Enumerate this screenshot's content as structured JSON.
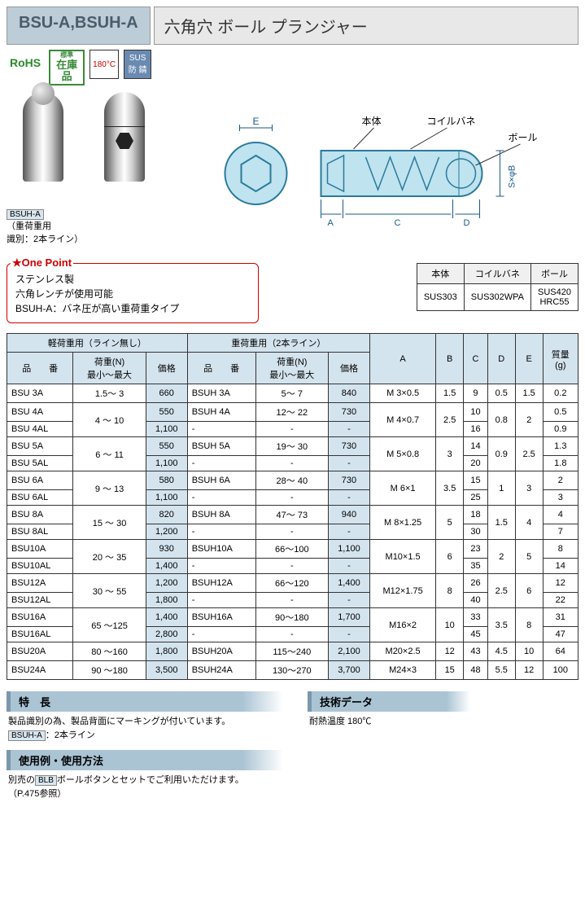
{
  "header": {
    "code": "BSU-A,BSUH-A",
    "title": "六角穴 ボール プランジャー"
  },
  "badges": {
    "rohs": "RoHS",
    "stock_small1": "標準",
    "stock_main": "在庫品",
    "temp": "180°C",
    "sus_top": "SUS",
    "sus_bottom": "防 錆"
  },
  "photo": {
    "tag": "BSUH-A",
    "caption1": "（重荷重用",
    "caption2": " 識別：2本ライン）"
  },
  "diagram": {
    "labels": {
      "body": "本体",
      "spring": "コイルバネ",
      "ball": "ボール"
    },
    "dims": {
      "E": "E",
      "A": "A",
      "C": "C",
      "D": "D",
      "SB": "S×φB"
    },
    "colors": {
      "fill": "#bfe3ef",
      "stroke": "#2a7a9a",
      "dim": "#1a5a8a"
    }
  },
  "onepoint": {
    "title": "One Point",
    "lines": [
      "ステンレス製",
      "六角レンチが使用可能",
      "BSUH-A：バネ圧が高い重荷重タイプ"
    ]
  },
  "material": {
    "headers": [
      "本体",
      "コイルバネ",
      "ボール"
    ],
    "cells": [
      "SUS303",
      "SUS302WPA",
      "SUS420\nHRC55"
    ]
  },
  "table": {
    "group1": "軽荷重用（ライン無し）",
    "group2": "重荷重用（2本ライン）",
    "headers": {
      "pn": "品　　番",
      "loadN": "荷重(N)",
      "loadSub": "最小～最大",
      "price": "価格",
      "A": "A",
      "B": "B",
      "C": "C",
      "D": "D",
      "E": "E",
      "mass": "質量\n(g)"
    },
    "rows": [
      {
        "pn": "BSU  3A",
        "load": "1.5～  3",
        "price": "660",
        "hpn": "BSUH  3A",
        "hload": "5～  7",
        "hprice": "840",
        "A": "M  3×0.5",
        "B": "1.5",
        "C": "9",
        "D": "0.5",
        "E": "1.5",
        "g": "0.2"
      },
      {
        "pn": "BSU  4A",
        "load": "4  ～ 10",
        "price": "550",
        "hpn": "BSUH  4A",
        "hload": "12～ 22",
        "hprice": "730",
        "A": "M  4×0.7",
        "B": "2.5",
        "C": "10",
        "D": "0.8",
        "E": "2",
        "g": "0.5",
        "span2": true
      },
      {
        "pn": "BSU  4AL",
        "load": "",
        "price": "1,100",
        "hpn": "-",
        "hload": "-",
        "hprice": "-",
        "C": "16",
        "g": "0.9"
      },
      {
        "pn": "BSU  5A",
        "load": "6  ～ 11",
        "price": "550",
        "hpn": "BSUH  5A",
        "hload": "19～ 30",
        "hprice": "730",
        "A": "M  5×0.8",
        "B": "3",
        "C": "14",
        "D": "0.9",
        "E": "2.5",
        "g": "1.3",
        "span2": true
      },
      {
        "pn": "BSU  5AL",
        "load": "",
        "price": "1,100",
        "hpn": "-",
        "hload": "-",
        "hprice": "-",
        "C": "20",
        "g": "1.8"
      },
      {
        "pn": "BSU  6A",
        "load": "9  ～ 13",
        "price": "580",
        "hpn": "BSUH  6A",
        "hload": "28～ 40",
        "hprice": "730",
        "A": "M  6×1",
        "B": "3.5",
        "C": "15",
        "D": "1",
        "E": "3",
        "g": "2",
        "span2": true
      },
      {
        "pn": "BSU  6AL",
        "load": "",
        "price": "1,100",
        "hpn": "-",
        "hload": "-",
        "hprice": "-",
        "C": "25",
        "g": "3"
      },
      {
        "pn": "BSU  8A",
        "load": "15  ～ 30",
        "price": "820",
        "hpn": "BSUH  8A",
        "hload": "47～  73",
        "hprice": "940",
        "A": "M  8×1.25",
        "B": "5",
        "C": "18",
        "D": "1.5",
        "E": "4",
        "g": "4",
        "span2": true
      },
      {
        "pn": "BSU  8AL",
        "load": "",
        "price": "1,200",
        "hpn": "-",
        "hload": "-",
        "hprice": "-",
        "C": "30",
        "g": "7"
      },
      {
        "pn": "BSU10A",
        "load": "20  ～ 35",
        "price": "930",
        "hpn": "BSUH10A",
        "hload": "66～100",
        "hprice": "1,100",
        "A": "M10×1.5",
        "B": "6",
        "C": "23",
        "D": "2",
        "E": "5",
        "g": "8",
        "span2": true
      },
      {
        "pn": "BSU10AL",
        "load": "",
        "price": "1,400",
        "hpn": "-",
        "hload": "-",
        "hprice": "-",
        "C": "35",
        "g": "14"
      },
      {
        "pn": "BSU12A",
        "load": "30  ～ 55",
        "price": "1,200",
        "hpn": "BSUH12A",
        "hload": "66～120",
        "hprice": "1,400",
        "A": "M12×1.75",
        "B": "8",
        "C": "26",
        "D": "2.5",
        "E": "6",
        "g": "12",
        "span2": true
      },
      {
        "pn": "BSU12AL",
        "load": "",
        "price": "1,800",
        "hpn": "-",
        "hload": "-",
        "hprice": "-",
        "C": "40",
        "g": "22"
      },
      {
        "pn": "BSU16A",
        "load": "65  ～125",
        "price": "1,400",
        "hpn": "BSUH16A",
        "hload": "90～180",
        "hprice": "1,700",
        "A": "M16×2",
        "B": "10",
        "C": "33",
        "D": "3.5",
        "E": "8",
        "g": "31",
        "span2": true
      },
      {
        "pn": "BSU16AL",
        "load": "",
        "price": "2,800",
        "hpn": "-",
        "hload": "-",
        "hprice": "-",
        "C": "45",
        "g": "47"
      },
      {
        "pn": "BSU20A",
        "load": "80  ～160",
        "price": "1,800",
        "hpn": "BSUH20A",
        "hload": "115～240",
        "hprice": "2,100",
        "A": "M20×2.5",
        "B": "12",
        "C": "43",
        "D": "4.5",
        "E": "10",
        "g": "64"
      },
      {
        "pn": "BSU24A",
        "load": "90  ～180",
        "price": "3,500",
        "hpn": "BSUH24A",
        "hload": "130～270",
        "hprice": "3,700",
        "A": "M24×3",
        "B": "15",
        "C": "48",
        "D": "5.5",
        "E": "12",
        "g": "100"
      }
    ]
  },
  "sections": {
    "features": {
      "title": "特　長",
      "body": "製品識別の為、製品背面にマーキングが付いています。",
      "tag": "BSUH-A",
      "tagline": "：2本ライン"
    },
    "tech": {
      "title": "技術データ",
      "body": "耐熱温度 180℃"
    },
    "usage": {
      "title": "使用例・使用方法",
      "body1": "別売の",
      "tag": "BLB",
      "body2": "ボールボタンとセットでご利用いただけます。",
      "body3": "（P.475参照）"
    }
  }
}
